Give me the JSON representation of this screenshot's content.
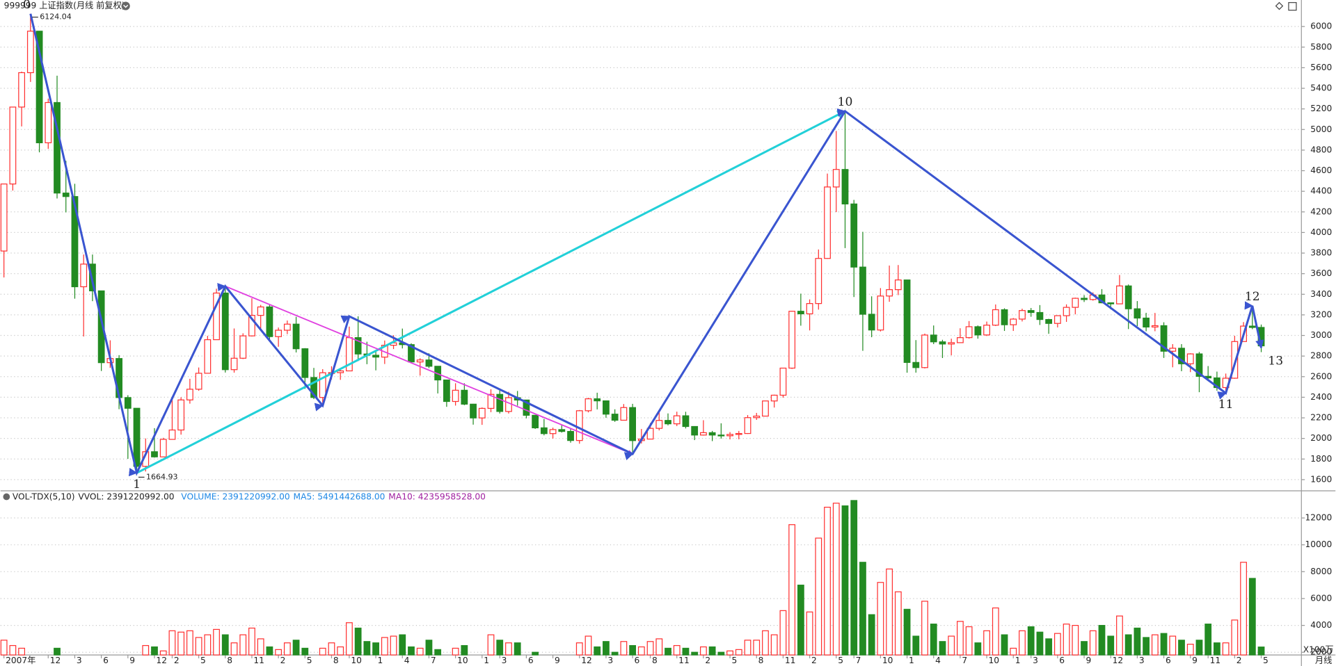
{
  "chart_data": {
    "type": "candlestick",
    "title": "999999 上证指数(月线 前复权)",
    "period_label": "月线",
    "up_color": "#ff3030",
    "down_color": "#228b22",
    "grid": true,
    "categories": [
      "2007年",
      null,
      null,
      null,
      null,
      "12",
      null,
      null,
      "3",
      null,
      null,
      "6",
      null,
      null,
      "9",
      null,
      null,
      "12",
      null,
      "2",
      null,
      null,
      "5",
      null,
      null,
      "8",
      null,
      null,
      "11",
      null,
      null,
      "2",
      null,
      null,
      "5",
      null,
      null,
      "8",
      null,
      "10",
      null,
      null,
      "1",
      null,
      null,
      "4",
      null,
      null,
      "7",
      null,
      null,
      "10",
      null,
      null,
      "1",
      null,
      "3",
      null,
      null,
      "6",
      null,
      null,
      "9",
      null,
      null,
      "12",
      null,
      null,
      "3",
      null,
      null,
      "6",
      null,
      "8",
      null,
      null,
      "11",
      null,
      null,
      "2",
      null,
      null,
      "5",
      null,
      null,
      "8",
      null,
      null,
      "11",
      null,
      null,
      "2",
      null,
      null,
      "5",
      null,
      "7",
      null,
      null,
      "10",
      null,
      null,
      "1",
      null,
      null,
      "4",
      null,
      null,
      "7",
      null,
      null,
      "10",
      null,
      null,
      "1",
      null,
      "3",
      null,
      null,
      "6",
      null,
      null,
      "9",
      null,
      null,
      "12",
      null,
      null,
      "3",
      null,
      null,
      "6",
      null,
      null,
      "9",
      null,
      "11",
      null,
      null,
      "2",
      null,
      null,
      "5"
    ],
    "ohlc": [
      [
        3820,
        4472,
        3563,
        4471
      ],
      [
        4471,
        5218,
        4407,
        5218
      ],
      [
        5218,
        5562,
        5030,
        5552
      ],
      [
        5552,
        6124,
        5462,
        5955
      ],
      [
        5955,
        5956,
        4778,
        4871
      ],
      [
        4871,
        5300,
        4812,
        5262
      ],
      [
        5262,
        5523,
        4330,
        4383
      ],
      [
        4383,
        4696,
        4195,
        4349
      ],
      [
        4349,
        4473,
        3357,
        3473
      ],
      [
        3473,
        3786,
        2990,
        3693
      ],
      [
        3693,
        3786,
        3333,
        3433
      ],
      [
        3433,
        3434,
        2655,
        2736
      ],
      [
        2736,
        2953,
        2685,
        2776
      ],
      [
        2776,
        2809,
        2284,
        2397
      ],
      [
        2397,
        2420,
        1802,
        2293
      ],
      [
        2293,
        2293,
        1665,
        1729
      ],
      [
        1729,
        2000,
        1679,
        1871
      ],
      [
        1871,
        2100,
        1814,
        1821
      ],
      [
        1821,
        2006,
        1820,
        1991
      ],
      [
        1991,
        2402,
        1990,
        2082
      ],
      [
        2082,
        2400,
        2037,
        2374
      ],
      [
        2374,
        2579,
        2338,
        2478
      ],
      [
        2478,
        2689,
        2463,
        2633
      ],
      [
        2633,
        2996,
        2629,
        2959
      ],
      [
        2959,
        3454,
        2957,
        3412
      ],
      [
        3412,
        3478,
        2640,
        2668
      ],
      [
        2668,
        3068,
        2639,
        2779
      ],
      [
        2779,
        3021,
        2771,
        2996
      ],
      [
        2996,
        3361,
        2990,
        3195
      ],
      [
        3195,
        3297,
        3062,
        3277
      ],
      [
        3277,
        3306,
        2963,
        2989
      ],
      [
        2989,
        3077,
        2890,
        3051
      ],
      [
        3051,
        3145,
        3013,
        3110
      ],
      [
        3110,
        3181,
        2835,
        2871
      ],
      [
        2871,
        2877,
        2481,
        2592
      ],
      [
        2592,
        2685,
        2382,
        2398
      ],
      [
        2398,
        2673,
        2319,
        2638
      ],
      [
        2638,
        2701,
        2573,
        2639
      ],
      [
        2639,
        2680,
        2569,
        2656
      ],
      [
        2656,
        3086,
        2655,
        2979
      ],
      [
        2979,
        3186,
        2751,
        2820
      ],
      [
        2820,
        2939,
        2721,
        2808
      ],
      [
        2808,
        2854,
        2661,
        2790
      ],
      [
        2790,
        2951,
        2723,
        2905
      ],
      [
        2905,
        3002,
        2868,
        2928
      ],
      [
        2928,
        3067,
        2874,
        2911
      ],
      [
        2911,
        2924,
        2731,
        2743
      ],
      [
        2743,
        2779,
        2610,
        2762
      ],
      [
        2762,
        2827,
        2683,
        2701
      ],
      [
        2701,
        2701,
        2437,
        2568
      ],
      [
        2568,
        2569,
        2307,
        2359
      ],
      [
        2359,
        2536,
        2319,
        2468
      ],
      [
        2468,
        2536,
        2323,
        2333
      ],
      [
        2333,
        2336,
        2134,
        2199
      ],
      [
        2199,
        2301,
        2132,
        2292
      ],
      [
        2292,
        2478,
        2255,
        2428
      ],
      [
        2428,
        2478,
        2242,
        2262
      ],
      [
        2262,
        2453,
        2242,
        2396
      ],
      [
        2396,
        2461,
        2318,
        2373
      ],
      [
        2373,
        2373,
        2195,
        2225
      ],
      [
        2225,
        2227,
        2092,
        2103
      ],
      [
        2103,
        2190,
        2030,
        2047
      ],
      [
        2047,
        2105,
        1999,
        2086
      ],
      [
        2086,
        2136,
        2057,
        2068
      ],
      [
        2068,
        2093,
        1959,
        1980
      ],
      [
        1980,
        2276,
        1949,
        2269
      ],
      [
        2269,
        2395,
        2253,
        2385
      ],
      [
        2385,
        2444,
        2282,
        2365
      ],
      [
        2365,
        2368,
        2201,
        2236
      ],
      [
        2236,
        2283,
        2161,
        2177
      ],
      [
        2177,
        2334,
        2175,
        2300
      ],
      [
        2300,
        2336,
        1849,
        1979
      ],
      [
        1979,
        2092,
        1951,
        1994
      ],
      [
        1994,
        2149,
        1991,
        2098
      ],
      [
        2098,
        2270,
        2078,
        2175
      ],
      [
        2175,
        2243,
        2127,
        2142
      ],
      [
        2142,
        2260,
        2120,
        2220
      ],
      [
        2220,
        2259,
        2097,
        2116
      ],
      [
        2116,
        2118,
        1984,
        2033
      ],
      [
        2033,
        2177,
        2028,
        2056
      ],
      [
        2056,
        2073,
        1974,
        2033
      ],
      [
        2033,
        2147,
        1998,
        2026
      ],
      [
        2026,
        2062,
        1991,
        2039
      ],
      [
        2039,
        2073,
        1992,
        2048
      ],
      [
        2048,
        2227,
        2044,
        2202
      ],
      [
        2202,
        2248,
        2180,
        2217
      ],
      [
        2217,
        2366,
        2214,
        2364
      ],
      [
        2364,
        2425,
        2300,
        2420
      ],
      [
        2420,
        2685,
        2396,
        2683
      ],
      [
        2683,
        3239,
        2675,
        3235
      ],
      [
        3235,
        3406,
        3095,
        3210
      ],
      [
        3210,
        3350,
        3049,
        3310
      ],
      [
        3310,
        3835,
        3251,
        3748
      ],
      [
        3748,
        4572,
        3744,
        4442
      ],
      [
        4442,
        4986,
        4198,
        4612
      ],
      [
        4612,
        5178,
        3848,
        4277
      ],
      [
        4277,
        4317,
        3373,
        3664
      ],
      [
        3664,
        4006,
        2851,
        3206
      ],
      [
        3206,
        3380,
        2983,
        3053
      ],
      [
        3053,
        3460,
        3039,
        3383
      ],
      [
        3383,
        3679,
        3327,
        3445
      ],
      [
        3445,
        3684,
        3392,
        3539
      ],
      [
        3539,
        3539,
        2638,
        2738
      ],
      [
        2738,
        2955,
        2639,
        2688
      ],
      [
        2688,
        3018,
        2680,
        3004
      ],
      [
        3004,
        3097,
        2916,
        2938
      ],
      [
        2938,
        2958,
        2781,
        2917
      ],
      [
        2917,
        2969,
        2807,
        2930
      ],
      [
        2930,
        3070,
        2928,
        2979
      ],
      [
        2979,
        3140,
        2970,
        3085
      ],
      [
        3085,
        3097,
        2969,
        3005
      ],
      [
        3005,
        3135,
        2995,
        3100
      ],
      [
        3100,
        3301,
        3092,
        3250
      ],
      [
        3250,
        3264,
        3044,
        3104
      ],
      [
        3104,
        3169,
        3044,
        3159
      ],
      [
        3159,
        3260,
        3136,
        3242
      ],
      [
        3242,
        3267,
        3182,
        3223
      ],
      [
        3223,
        3295,
        3102,
        3155
      ],
      [
        3155,
        3162,
        3016,
        3117
      ],
      [
        3117,
        3196,
        3078,
        3192
      ],
      [
        3192,
        3302,
        3132,
        3273
      ],
      [
        3273,
        3367,
        3205,
        3361
      ],
      [
        3361,
        3392,
        3325,
        3349
      ],
      [
        3349,
        3418,
        3338,
        3393
      ],
      [
        3393,
        3450,
        3313,
        3317
      ],
      [
        3317,
        3318,
        3254,
        3307
      ],
      [
        3307,
        3587,
        3305,
        3481
      ],
      [
        3481,
        3495,
        3062,
        3259
      ],
      [
        3259,
        3334,
        3091,
        3169
      ],
      [
        3169,
        3220,
        3041,
        3082
      ],
      [
        3082,
        3219,
        3041,
        3095
      ],
      [
        3095,
        3128,
        2782,
        2847
      ],
      [
        2847,
        2916,
        2691,
        2876
      ],
      [
        2876,
        2916,
        2653,
        2725
      ],
      [
        2725,
        2827,
        2644,
        2821
      ],
      [
        2821,
        2840,
        2449,
        2603
      ],
      [
        2603,
        2703,
        2557,
        2588
      ],
      [
        2588,
        2649,
        2463,
        2494
      ],
      [
        2494,
        2630,
        2440,
        2585
      ],
      [
        2585,
        2997,
        2580,
        2941
      ],
      [
        2941,
        3130,
        2940,
        3091
      ],
      [
        3091,
        3288,
        3061,
        3078
      ],
      [
        3078,
        3106,
        2838,
        2899
      ]
    ],
    "ylim": [
      1500,
      6175
    ],
    "yticks": [
      1600,
      1800,
      2000,
      2200,
      2400,
      2600,
      2800,
      3000,
      3200,
      3400,
      3600,
      3800,
      4000,
      4200,
      4400,
      4600,
      4800,
      5000,
      5200,
      5400,
      5600,
      5800,
      6000
    ],
    "extreme_labels": [
      {
        "index": 3,
        "value": 6124.04
      },
      {
        "index": 15,
        "value": 1664.93
      }
    ],
    "wave_labels": [
      {
        "label": "0",
        "index": 3,
        "value": 6124
      },
      {
        "label": "1",
        "index": 15,
        "value": 1665
      },
      {
        "label": "10",
        "index": 95,
        "value": 5178
      },
      {
        "label": "11",
        "index": 138,
        "value": 2440
      },
      {
        "label": "12",
        "index": 141,
        "value": 3288
      },
      {
        "label": "13",
        "index": 142,
        "value": 2880
      }
    ],
    "wave_lines": [
      {
        "color": "#22d0d8",
        "points": [
          [
            15,
            1665
          ],
          [
            95,
            5178
          ]
        ]
      },
      {
        "color": "#e040e0",
        "points": [
          [
            25,
            3478
          ],
          [
            71,
            1849
          ]
        ]
      },
      {
        "color": "#3a55d0",
        "points": [
          [
            3,
            6124
          ],
          [
            15,
            1665
          ],
          [
            25,
            3478
          ],
          [
            36,
            2319
          ],
          [
            39,
            3186
          ],
          [
            71,
            1849
          ],
          [
            95,
            5178
          ],
          [
            138,
            2440
          ],
          [
            141,
            3288
          ],
          [
            142,
            2880
          ]
        ]
      }
    ],
    "volume": {
      "indicator": "VOL-TDX(5,10)",
      "vvol": "VVOL: 2391220992.00",
      "volume_text": "VOLUME: 2391220992.00",
      "ma5_text": "MA5: 5491442688.00",
      "ma10_text": "MA10: 4235958528.00",
      "unit": "X100万",
      "values": [
        2900,
        2500,
        2300,
        1700,
        1800,
        1400,
        2300,
        1100,
        1700,
        1800,
        1500,
        1200,
        1300,
        1000,
        1400,
        1600,
        2500,
        2400,
        2100,
        3600,
        3500,
        3600,
        3100,
        3300,
        3700,
        3300,
        2700,
        3300,
        3800,
        3000,
        2400,
        2200,
        2700,
        2900,
        2300,
        1800,
        2300,
        2700,
        2400,
        4200,
        3800,
        2800,
        2700,
        3100,
        3200,
        3300,
        2400,
        2300,
        2900,
        2200,
        1800,
        2300,
        2500,
        1800,
        1600,
        3300,
        2900,
        2700,
        2700,
        1800,
        2000,
        1800,
        1500,
        1400,
        1500,
        2700,
        3200,
        2400,
        2800,
        2000,
        2800,
        2500,
        2400,
        2800,
        3000,
        2300,
        2500,
        2300,
        2000,
        2400,
        2400,
        2000,
        2100,
        2200,
        2900,
        2900,
        3600,
        3300,
        5100,
        11500,
        7000,
        5000,
        10500,
        12800,
        13100,
        12900,
        13300,
        8700,
        4800,
        7200,
        8200,
        6500,
        5200,
        3200,
        5800,
        4100,
        2800,
        3200,
        4300,
        3900,
        2700,
        3600,
        5300,
        3300,
        2300,
        3600,
        3900,
        3500,
        3000,
        3400,
        4100,
        4000,
        2800,
        3600,
        4000,
        3200,
        4700,
        3300,
        3800,
        3100,
        3300,
        3400,
        3200,
        2900,
        2600,
        2900,
        4100,
        2700,
        2700,
        4400,
        8700,
        7500,
        2391
      ],
      "ylim": [
        1800,
        13200
      ],
      "yticks": [
        2000,
        4000,
        6000,
        8000,
        10000,
        12000
      ]
    }
  }
}
